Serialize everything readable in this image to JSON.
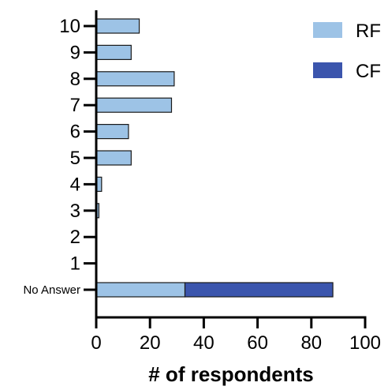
{
  "chart_data": {
    "type": "bar",
    "orientation": "horizontal",
    "stacked": true,
    "categories": [
      "10",
      "9",
      "8",
      "7",
      "6",
      "5",
      "4",
      "3",
      "2",
      "1",
      "No Answer"
    ],
    "series": [
      {
        "name": "RF",
        "color": "#9dc3e6",
        "values": [
          16,
          13,
          29,
          28,
          12,
          13,
          2,
          1,
          0,
          0,
          33
        ]
      },
      {
        "name": "CF",
        "color": "#3b55ad",
        "values": [
          0,
          0,
          0,
          0,
          0,
          0,
          0,
          0,
          0,
          0,
          55
        ]
      }
    ],
    "xlabel": "# of respondents",
    "ylabel": "",
    "xlim": [
      0,
      100
    ],
    "xticks": [
      "0",
      "20",
      "40",
      "60",
      "80",
      "100"
    ],
    "grid": false,
    "legend_position": "top-right"
  }
}
